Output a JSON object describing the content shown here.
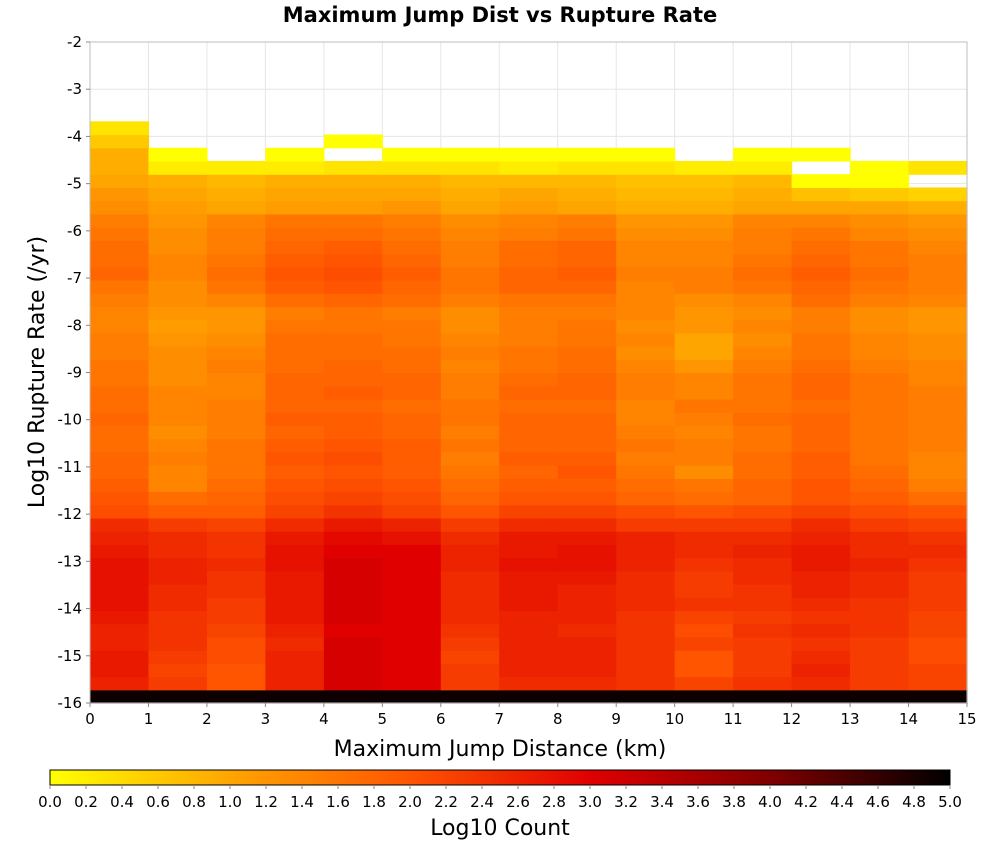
{
  "chart_data": {
    "type": "heatmap",
    "title": "Maximum Jump Dist vs Rupture Rate",
    "xlabel": "Maximum Jump Distance (km)",
    "ylabel": "Log10 Rupture Rate (/yr)",
    "colorbar_label": "Log10 Count",
    "xlim": [
      0,
      15
    ],
    "ylim": [
      -16,
      -2
    ],
    "x_ticks": [
      "0",
      "1",
      "2",
      "3",
      "4",
      "5",
      "6",
      "7",
      "8",
      "9",
      "10",
      "11",
      "12",
      "13",
      "14",
      "15"
    ],
    "y_ticks": [
      "-2",
      "-3",
      "-4",
      "-5",
      "-6",
      "-7",
      "-8",
      "-9",
      "-10",
      "-11",
      "-12",
      "-13",
      "-14",
      "-15",
      "-16"
    ],
    "colorbar_range": [
      0,
      5
    ],
    "colorbar_ticks": [
      "0.0",
      "0.2",
      "0.4",
      "0.6",
      "0.8",
      "1.0",
      "1.2",
      "1.4",
      "1.6",
      "1.8",
      "2.0",
      "2.2",
      "2.4",
      "2.6",
      "2.8",
      "3.0",
      "3.2",
      "3.4",
      "3.6",
      "3.8",
      "4.0",
      "4.2",
      "4.4",
      "4.6",
      "4.8",
      "5.0"
    ],
    "colormap": [
      "#ffff00",
      "#ffa500",
      "#ff5500",
      "#e00000",
      "#800000",
      "#000000"
    ],
    "y_bin_start": -16,
    "y_bin_width": 0.28,
    "y_bin_count": 50,
    "x_bin_width": 1,
    "values": [
      [
        4.9,
        4.9,
        4.9,
        4.9,
        4.9,
        4.9,
        4.9,
        4.9,
        4.9,
        4.9,
        4.9,
        4.9,
        4.9,
        4.9,
        4.9
      ],
      [
        2.6,
        2.3,
        2.0,
        2.6,
        3.1,
        3.0,
        2.3,
        2.5,
        2.5,
        2.4,
        2.2,
        2.4,
        2.5,
        2.3,
        2.2
      ],
      [
        2.7,
        2.2,
        2.0,
        2.6,
        3.1,
        3.0,
        2.3,
        2.6,
        2.6,
        2.4,
        2.0,
        2.3,
        2.6,
        2.3,
        2.2
      ],
      [
        2.7,
        2.3,
        2.1,
        2.6,
        3.1,
        3.0,
        2.2,
        2.6,
        2.6,
        2.4,
        2.0,
        2.3,
        2.5,
        2.3,
        2.1
      ],
      [
        2.6,
        2.4,
        2.1,
        2.5,
        3.1,
        3.0,
        2.3,
        2.6,
        2.6,
        2.4,
        2.2,
        2.3,
        2.4,
        2.3,
        2.1
      ],
      [
        2.6,
        2.4,
        2.2,
        2.6,
        3.0,
        3.0,
        2.4,
        2.6,
        2.5,
        2.4,
        2.1,
        2.4,
        2.5,
        2.4,
        2.2
      ],
      [
        2.7,
        2.4,
        2.3,
        2.7,
        3.1,
        3.0,
        2.5,
        2.6,
        2.6,
        2.4,
        2.2,
        2.3,
        2.4,
        2.4,
        2.2
      ],
      [
        2.8,
        2.5,
        2.3,
        2.7,
        3.1,
        3.0,
        2.5,
        2.7,
        2.6,
        2.5,
        2.4,
        2.4,
        2.5,
        2.4,
        2.3
      ],
      [
        2.8,
        2.5,
        2.4,
        2.7,
        3.1,
        3.0,
        2.5,
        2.7,
        2.6,
        2.5,
        2.3,
        2.4,
        2.6,
        2.5,
        2.3
      ],
      [
        2.8,
        2.6,
        2.4,
        2.7,
        3.1,
        3.0,
        2.5,
        2.7,
        2.7,
        2.5,
        2.3,
        2.5,
        2.6,
        2.5,
        2.3
      ],
      [
        2.8,
        2.6,
        2.5,
        2.8,
        3.1,
        3.0,
        2.6,
        2.8,
        2.8,
        2.6,
        2.4,
        2.5,
        2.7,
        2.6,
        2.4
      ],
      [
        2.7,
        2.5,
        2.4,
        2.8,
        3.0,
        3.0,
        2.6,
        2.7,
        2.8,
        2.6,
        2.5,
        2.6,
        2.7,
        2.5,
        2.5
      ],
      [
        2.6,
        2.5,
        2.4,
        2.7,
        2.9,
        2.8,
        2.5,
        2.7,
        2.7,
        2.6,
        2.5,
        2.5,
        2.6,
        2.5,
        2.4
      ],
      [
        2.5,
        2.3,
        2.2,
        2.5,
        2.7,
        2.6,
        2.3,
        2.5,
        2.5,
        2.3,
        2.3,
        2.3,
        2.5,
        2.3,
        2.2
      ],
      [
        2.1,
        1.9,
        1.9,
        2.2,
        2.4,
        2.2,
        2.0,
        2.2,
        2.2,
        2.1,
        2.0,
        2.1,
        2.2,
        2.1,
        2.0
      ],
      [
        2.0,
        1.7,
        1.8,
        2.1,
        2.2,
        2.1,
        1.8,
        2.0,
        2.0,
        1.8,
        1.7,
        1.8,
        2.0,
        1.9,
        1.7
      ],
      [
        1.9,
        1.4,
        1.7,
        2.0,
        2.1,
        2.0,
        1.7,
        1.9,
        1.9,
        1.7,
        1.6,
        1.8,
        2.0,
        1.8,
        1.5
      ],
      [
        1.8,
        1.4,
        1.6,
        1.9,
        2.0,
        1.9,
        1.6,
        1.8,
        2.0,
        1.6,
        1.3,
        1.7,
        1.9,
        1.7,
        1.4
      ],
      [
        1.8,
        1.5,
        1.6,
        2.0,
        2.1,
        1.9,
        1.5,
        1.9,
        1.9,
        1.5,
        1.5,
        1.7,
        1.9,
        1.6,
        1.4
      ],
      [
        1.7,
        1.4,
        1.6,
        1.9,
        2.0,
        1.9,
        1.6,
        1.8,
        1.8,
        1.6,
        1.5,
        1.6,
        1.8,
        1.6,
        1.5
      ],
      [
        1.7,
        1.3,
        1.5,
        1.8,
        1.9,
        1.8,
        1.5,
        1.8,
        1.8,
        1.5,
        1.4,
        1.6,
        1.8,
        1.6,
        1.5
      ],
      [
        1.8,
        1.4,
        1.5,
        1.9,
        1.9,
        1.8,
        1.6,
        1.8,
        1.8,
        1.4,
        1.5,
        1.7,
        1.8,
        1.6,
        1.5
      ],
      [
        1.7,
        1.4,
        1.5,
        1.8,
        1.8,
        1.7,
        1.6,
        1.7,
        1.7,
        1.4,
        1.6,
        1.6,
        1.7,
        1.6,
        1.5
      ],
      [
        1.7,
        1.4,
        1.4,
        1.8,
        1.9,
        1.8,
        1.5,
        1.8,
        1.8,
        1.5,
        1.4,
        1.6,
        1.8,
        1.6,
        1.5
      ],
      [
        1.6,
        1.3,
        1.4,
        1.8,
        1.8,
        1.8,
        1.5,
        1.7,
        1.8,
        1.5,
        1.4,
        1.6,
        1.8,
        1.6,
        1.4
      ],
      [
        1.6,
        1.3,
        1.5,
        1.7,
        1.8,
        1.7,
        1.4,
        1.6,
        1.7,
        1.4,
        1.2,
        1.5,
        1.7,
        1.5,
        1.4
      ],
      [
        1.5,
        1.3,
        1.4,
        1.7,
        1.7,
        1.7,
        1.5,
        1.6,
        1.7,
        1.3,
        1.0,
        1.4,
        1.6,
        1.4,
        1.3
      ],
      [
        1.5,
        1.2,
        1.3,
        1.7,
        1.7,
        1.6,
        1.4,
        1.5,
        1.6,
        1.4,
        1.0,
        1.3,
        1.6,
        1.4,
        1.3
      ],
      [
        1.4,
        1.1,
        1.2,
        1.6,
        1.6,
        1.6,
        1.3,
        1.5,
        1.6,
        1.3,
        1.2,
        1.4,
        1.5,
        1.3,
        1.2
      ],
      [
        1.4,
        1.2,
        1.2,
        1.5,
        1.6,
        1.5,
        1.3,
        1.5,
        1.5,
        1.4,
        1.2,
        1.3,
        1.5,
        1.3,
        1.2
      ],
      [
        1.5,
        1.3,
        1.4,
        1.7,
        1.8,
        1.7,
        1.5,
        1.6,
        1.6,
        1.4,
        1.3,
        1.4,
        1.7,
        1.5,
        1.4
      ],
      [
        1.6,
        1.3,
        1.6,
        1.9,
        2.0,
        1.8,
        1.6,
        1.8,
        1.8,
        1.4,
        1.5,
        1.6,
        1.8,
        1.6,
        1.5
      ],
      [
        1.8,
        1.4,
        1.7,
        2.0,
        2.1,
        1.9,
        1.6,
        1.8,
        1.9,
        1.5,
        1.5,
        1.7,
        1.9,
        1.7,
        1.5
      ],
      [
        1.7,
        1.4,
        1.6,
        1.9,
        2.0,
        1.8,
        1.5,
        1.7,
        1.8,
        1.4,
        1.4,
        1.6,
        1.8,
        1.6,
        1.5
      ],
      [
        1.7,
        1.3,
        1.5,
        1.8,
        1.9,
        1.7,
        1.5,
        1.7,
        1.8,
        1.4,
        1.4,
        1.5,
        1.7,
        1.6,
        1.4
      ],
      [
        1.6,
        1.3,
        1.5,
        1.7,
        1.7,
        1.6,
        1.4,
        1.5,
        1.6,
        1.3,
        1.3,
        1.5,
        1.6,
        1.4,
        1.3
      ],
      [
        1.5,
        1.2,
        1.4,
        1.6,
        1.6,
        1.5,
        1.3,
        1.4,
        1.5,
        1.2,
        1.2,
        1.4,
        1.4,
        1.3,
        1.2
      ],
      [
        1.3,
        1.1,
        1.0,
        1.1,
        1.1,
        1.2,
        1.0,
        1.1,
        1.0,
        0.9,
        0.9,
        1.0,
        1.0,
        1.0,
        0.9
      ],
      [
        1.2,
        1.0,
        0.9,
        1.0,
        1.0,
        1.0,
        0.9,
        1.0,
        0.9,
        0.8,
        0.8,
        0.9,
        0.7,
        0.6,
        0.5
      ],
      [
        1.0,
        0.9,
        0.8,
        0.9,
        0.9,
        0.9,
        0.8,
        0.8,
        0.8,
        0.7,
        0.7,
        0.8,
        0.0,
        0.0,
        null
      ],
      [
        0.9,
        0.2,
        0.2,
        0.2,
        0.3,
        0.3,
        0.3,
        0.2,
        0.3,
        0.3,
        0.2,
        0.2,
        null,
        0.0,
        0.3
      ],
      [
        0.9,
        0.0,
        null,
        0.0,
        null,
        0.0,
        0.0,
        0.0,
        0.0,
        0.0,
        null,
        0.0,
        0.0,
        null,
        null
      ],
      [
        0.6,
        null,
        null,
        null,
        0.0,
        null,
        null,
        null,
        null,
        null,
        null,
        null,
        null,
        null,
        null
      ],
      [
        0.3,
        null,
        null,
        null,
        null,
        null,
        null,
        null,
        null,
        null,
        null,
        null,
        null,
        null,
        null
      ],
      [
        null,
        null,
        null,
        null,
        null,
        null,
        null,
        null,
        null,
        null,
        null,
        null,
        null,
        null,
        null
      ],
      [
        null,
        null,
        null,
        null,
        null,
        null,
        null,
        null,
        null,
        null,
        null,
        null,
        null,
        null,
        null
      ],
      [
        null,
        null,
        null,
        null,
        null,
        null,
        null,
        null,
        null,
        null,
        null,
        null,
        null,
        null,
        null
      ],
      [
        null,
        null,
        null,
        null,
        null,
        null,
        null,
        null,
        null,
        null,
        null,
        null,
        null,
        null,
        null
      ],
      [
        null,
        null,
        null,
        null,
        null,
        null,
        null,
        null,
        null,
        null,
        null,
        null,
        null,
        null,
        null
      ],
      [
        null,
        null,
        null,
        null,
        null,
        null,
        null,
        null,
        null,
        null,
        null,
        null,
        null,
        null,
        null
      ]
    ]
  }
}
